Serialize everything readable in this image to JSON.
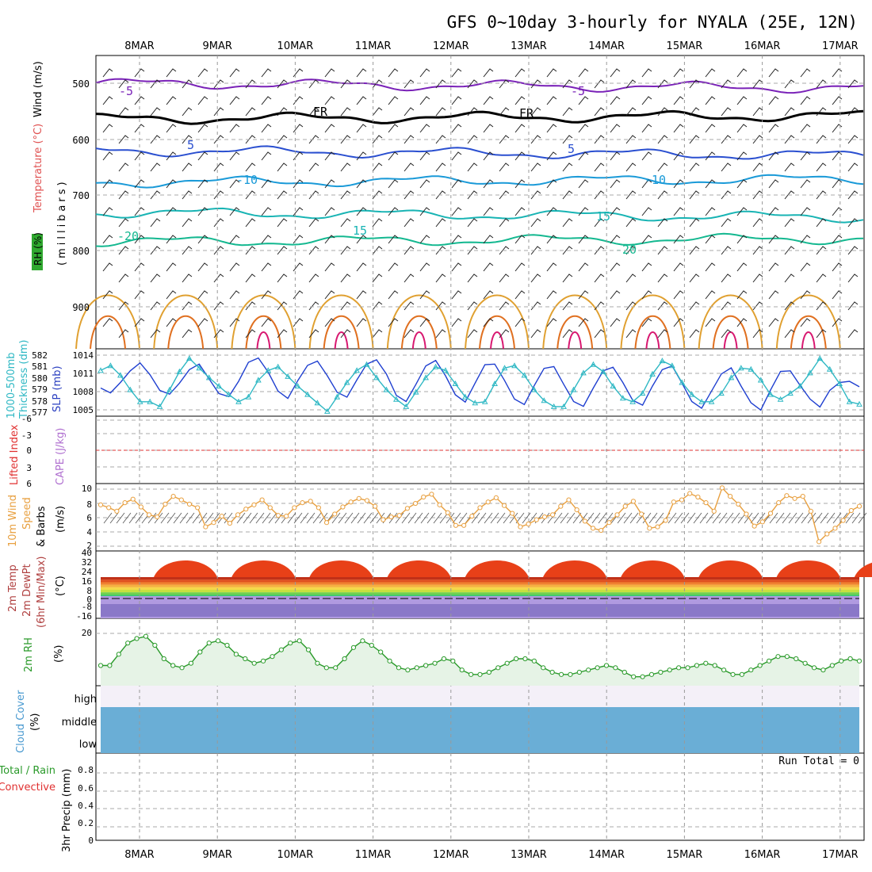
{
  "title": "GFS 0~10day 3-hourly for NYALA (25E, 12N)",
  "dates": [
    "8MAR",
    "9MAR",
    "10MAR",
    "11MAR",
    "12MAR",
    "13MAR",
    "14MAR",
    "15MAR",
    "16MAR",
    "17MAR"
  ],
  "colors": {
    "grid": "#999999",
    "slp": "#1f3fd0",
    "thickness": "#2fb8c4",
    "wind": "#e8a040",
    "rh": "#2a9a2a",
    "cloud": "#6aaed6",
    "cloud_bg": "#f4f0f8",
    "precip_rain": "#2a9a2a",
    "precip_conv": "#e03030"
  },
  "panels": {
    "upper": {
      "ylabel_rh": "RH (%)",
      "ylabel_temp": "Temperature (°C)",
      "ylabel_wind": "Wind (m/s)",
      "ylabel_p": "(millibars)",
      "yticks": [
        "500",
        "600",
        "700",
        "800",
        "900"
      ],
      "contour_labels": [
        "-5",
        "-5",
        "FR",
        "FR",
        "5",
        "5",
        "-10",
        "-10",
        "15",
        "15",
        "-20",
        "-20",
        "-10",
        "10"
      ]
    },
    "slp": {
      "ylabel_left": "1000-500mb",
      "ylabel_left2": "Thickness (dm)",
      "ylabel_right": "SLP (mb)",
      "thick_ticks": [
        "582",
        "581",
        "580",
        "579",
        "578",
        "577"
      ],
      "slp_ticks": [
        "1014",
        "1011",
        "1008",
        "1005"
      ]
    },
    "li": {
      "ylabel1": "Lifted Index",
      "ylabel2": "CAPE (J/kg)",
      "ticks": [
        "-6",
        "-3",
        "0",
        "3",
        "6"
      ]
    },
    "wind10": {
      "ylabel1": "10m Wind",
      "ylabel2": "Speed",
      "ylabel3": "& Barbs",
      "ylabel_unit": "(m/s)",
      "ticks": [
        "10",
        "8",
        "6",
        "4",
        "2"
      ]
    },
    "temp2m": {
      "ylabel1": "2m Temp",
      "ylabel2": "2m DewPt",
      "ylabel3": "(6hr Min/Max)",
      "ylabel_unit": "(°C)",
      "ticks": [
        "40",
        "32",
        "24",
        "16",
        "8",
        "0",
        "-8",
        "-16"
      ]
    },
    "rh2m": {
      "ylabel1": "2m RH",
      "ylabel_unit": "(%)",
      "ticks": [
        "20"
      ]
    },
    "cloud": {
      "ylabel1": "Cloud Cover",
      "ylabel_unit": "(%)",
      "levels": [
        "high",
        "middle",
        "low"
      ]
    },
    "precip": {
      "ylabel1": "3hr Precip (mm)",
      "ylabel2": "Total / Rain",
      "ylabel3": "Convective",
      "ticks": [
        "0.8",
        "0.6",
        "0.4",
        "0.2",
        "0"
      ],
      "run_total": "Run Total = 0"
    }
  },
  "chart_data": [
    {
      "type": "line",
      "title": "1000-500mb Thickness (dm) / SLP (mb)",
      "x_unit": "3-hourly steps from 7 Mar 12Z",
      "series": [
        {
          "name": "SLP (mb)",
          "axis": "right",
          "ylim": [
            1004,
            1015
          ],
          "values": [
            1008.6,
            1007.8,
            1009.5,
            1011.4,
            1012.7,
            1010.8,
            1008.2,
            1007.6,
            1009.4,
            1011.6,
            1012.5,
            1010.1,
            1007.7,
            1007.2,
            1009.7,
            1012.8,
            1013.5,
            1011.2,
            1008.1,
            1006.9,
            1009.8,
            1012.3,
            1013.0,
            1010.6,
            1007.9,
            1007.1,
            1009.9,
            1012.5,
            1013.2,
            1010.9,
            1007.4,
            1006.4,
            1009.2,
            1012.2,
            1013.1,
            1010.6,
            1007.5,
            1006.3,
            1009.4,
            1012.4,
            1012.5,
            1009.8,
            1006.8,
            1005.9,
            1009.0,
            1011.8,
            1012.1,
            1009.2,
            1006.4,
            1005.6,
            1008.6,
            1011.4,
            1012.0,
            1009.5,
            1006.6,
            1005.8,
            1008.9,
            1011.6,
            1012.2,
            1009.4,
            1006.4,
            1005.3,
            1008.1,
            1010.9,
            1011.9,
            1008.9,
            1006.2,
            1005.0,
            1008.3,
            1011.3,
            1011.4,
            1009.0,
            1006.8,
            1005.5,
            1008.2,
            1009.5,
            1009.7,
            1008.8
          ]
        },
        {
          "name": "1000-500mb Thickness (dm)",
          "axis": "left",
          "ylim": [
            576.8,
            582.4
          ],
          "values": [
            580.6,
            581.0,
            580.2,
            579.0,
            578.0,
            578.0,
            577.6,
            579.0,
            580.5,
            581.6,
            580.8,
            580.0,
            579.3,
            578.6,
            578.0,
            578.4,
            579.8,
            580.6,
            580.9,
            580.1,
            579.3,
            578.6,
            577.9,
            577.2,
            578.4,
            579.6,
            580.6,
            581.1,
            580.0,
            579.0,
            578.2,
            577.6,
            578.8,
            580.0,
            580.9,
            580.6,
            579.5,
            578.4,
            577.9,
            578.0,
            579.5,
            580.8,
            581.0,
            580.2,
            579.0,
            578.1,
            577.6,
            577.6,
            579.0,
            580.4,
            581.1,
            580.5,
            579.3,
            578.3,
            578.0,
            578.7,
            580.3,
            581.4,
            581.0,
            579.6,
            578.6,
            578.0,
            578.0,
            578.7,
            580.0,
            580.8,
            580.7,
            579.8,
            578.6,
            578.2,
            578.7,
            579.3,
            580.4,
            581.6,
            580.7,
            579.5,
            578.0,
            577.8
          ]
        }
      ]
    },
    {
      "type": "line",
      "title": "10m Wind Speed & Barbs (m/s)",
      "ylim": [
        1,
        10.5
      ],
      "series": [
        {
          "name": "10m Wind Speed",
          "values": [
            7.5,
            7.1,
            6.6,
            7.8,
            8.3,
            7.2,
            6.1,
            5.8,
            7.6,
            8.7,
            8.2,
            7.6,
            7.1,
            4.4,
            5.0,
            5.9,
            4.9,
            6.1,
            6.9,
            7.5,
            8.2,
            7.1,
            6.0,
            5.9,
            7.1,
            7.8,
            8.0,
            7.1,
            5.0,
            6.2,
            7.2,
            7.9,
            8.4,
            8.1,
            7.3,
            5.4,
            5.8,
            6.0,
            7.0,
            7.7,
            8.6,
            9.0,
            7.5,
            6.4,
            4.6,
            4.6,
            5.9,
            7.1,
            7.9,
            8.5,
            7.4,
            6.3,
            4.4,
            4.8,
            5.4,
            5.8,
            6.1,
            7.3,
            8.2,
            6.8,
            5.2,
            4.2,
            3.9,
            5.0,
            6.1,
            7.3,
            8.0,
            6.2,
            4.2,
            4.4,
            5.3,
            7.9,
            8.2,
            9.1,
            8.6,
            7.8,
            6.6,
            9.9,
            8.7,
            7.6,
            6.2,
            4.5,
            5.1,
            6.3,
            7.8,
            8.8,
            8.4,
            8.7,
            6.6,
            2.3,
            3.4,
            4.2,
            5.3,
            6.7,
            7.3
          ]
        }
      ]
    },
    {
      "type": "line",
      "title": "2m RH (%)",
      "ylim": [
        0,
        30
      ],
      "series": [
        {
          "name": "2m RH",
          "values": [
            9,
            9,
            14,
            19,
            21,
            22,
            18,
            12,
            9,
            8,
            10,
            15,
            19,
            20,
            18,
            14,
            12,
            10,
            11,
            13,
            16,
            19,
            20,
            16,
            10,
            8,
            8,
            12,
            17,
            20,
            18,
            15,
            11,
            8,
            7,
            8,
            9,
            10,
            12,
            11,
            7,
            5,
            5,
            6,
            8,
            10,
            12,
            12,
            11,
            8,
            6,
            5,
            5,
            6,
            7,
            8,
            9,
            8,
            6,
            4,
            4,
            5,
            6,
            7,
            8,
            8,
            9,
            10,
            9,
            7,
            5,
            5,
            7,
            9,
            11,
            13,
            13,
            12,
            10,
            8,
            7,
            9,
            11,
            12,
            11
          ]
        }
      ]
    },
    {
      "type": "area",
      "title": "Cloud Cover (%)",
      "series": [
        {
          "name": "low",
          "values": "100% cloud throughout"
        },
        {
          "name": "middle",
          "values": "100% cloud throughout"
        },
        {
          "name": "high",
          "values": "variable, partially clear"
        }
      ]
    },
    {
      "type": "bar",
      "title": "3hr Precip (mm)",
      "ylim": [
        0,
        1
      ],
      "series": [
        {
          "name": "Total / Rain",
          "values": "all 0"
        },
        {
          "name": "Convective",
          "values": "all 0"
        }
      ]
    }
  ]
}
